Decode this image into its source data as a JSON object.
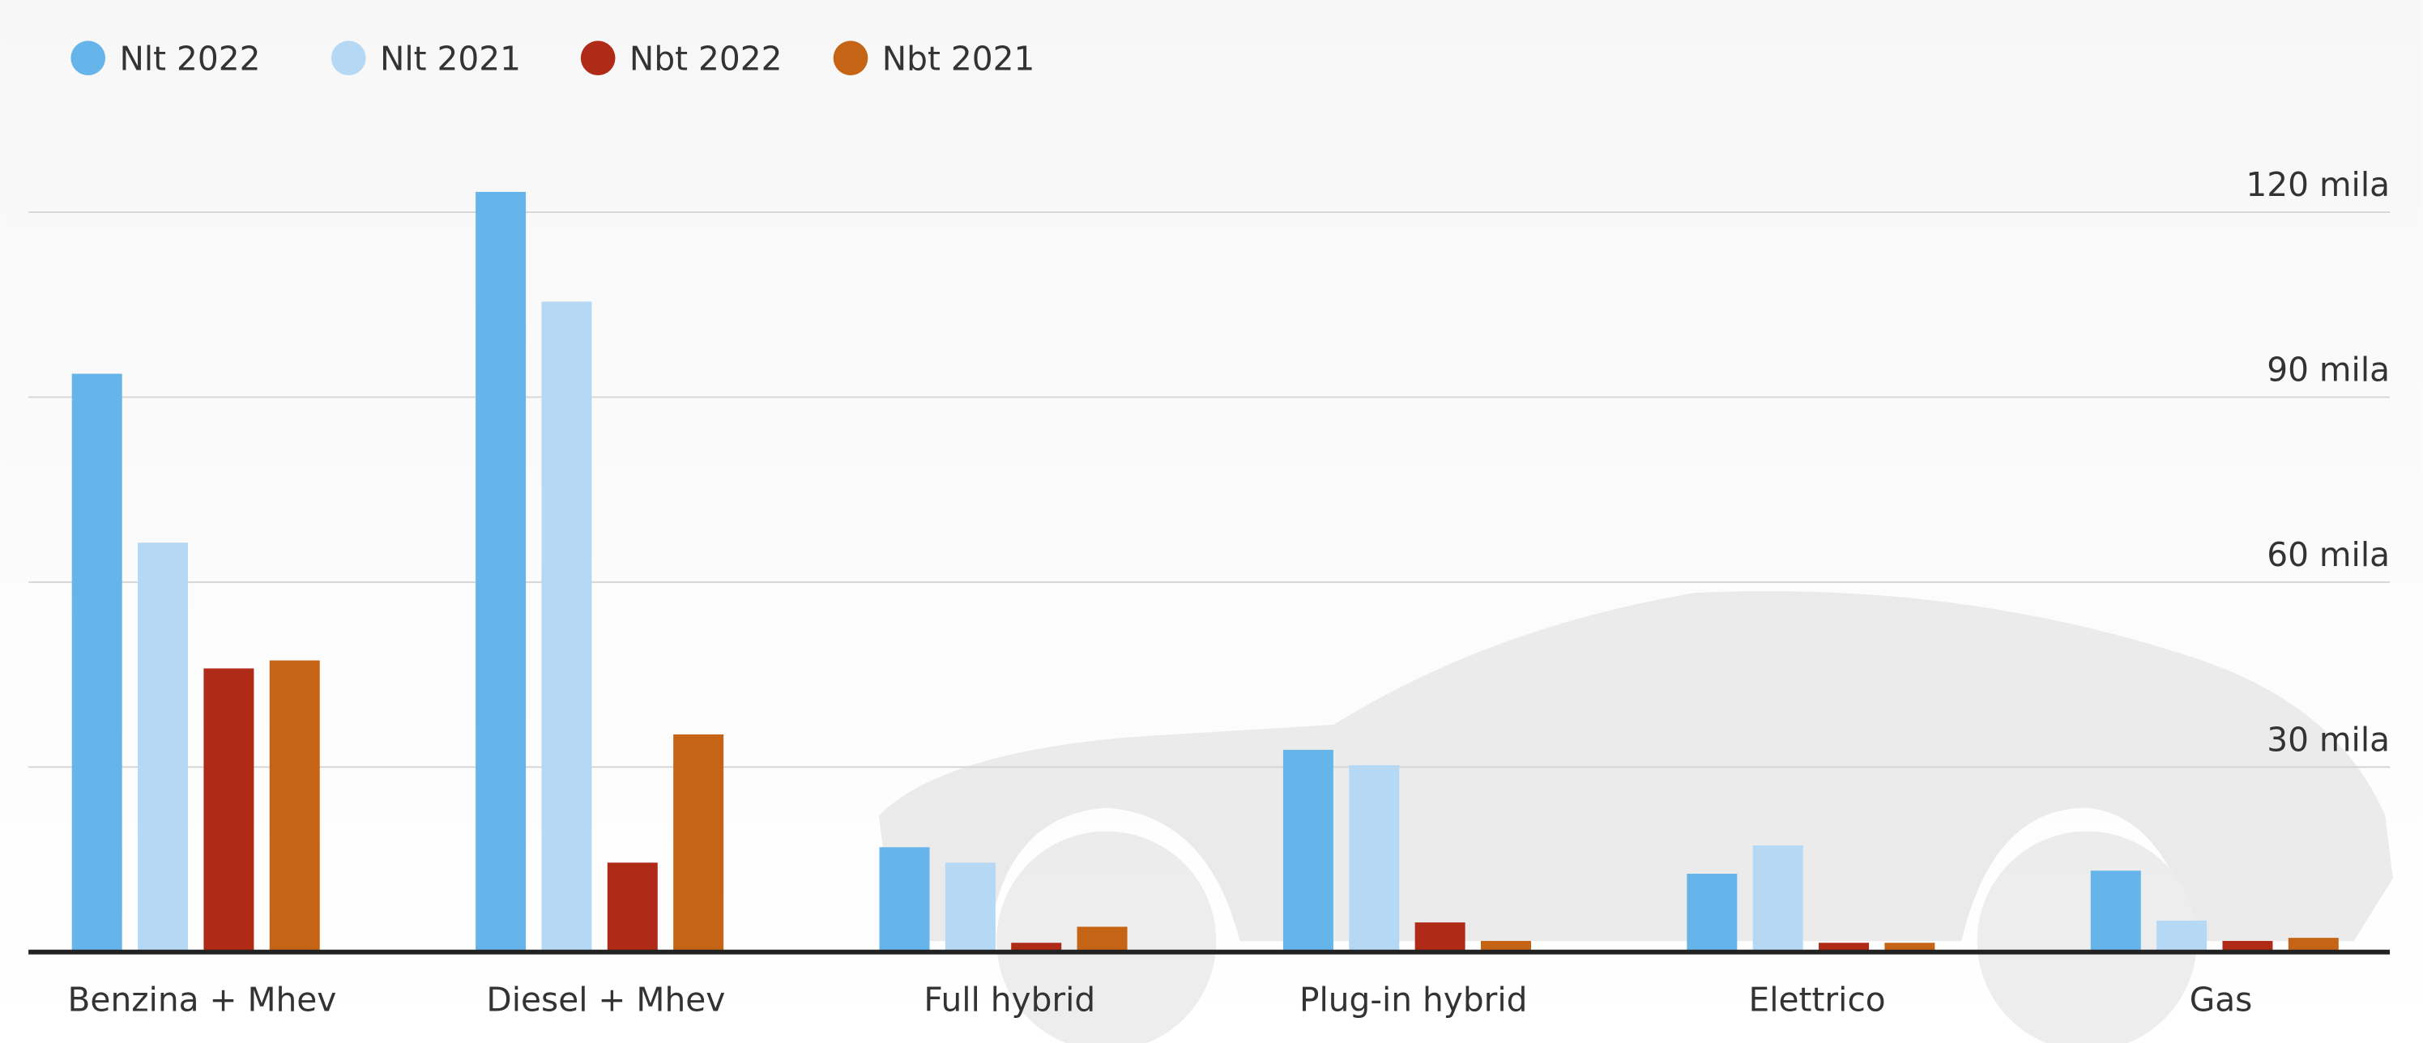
{
  "chart_data": {
    "type": "bar",
    "categories": [
      "Benzina + Mhev",
      "Diesel + Mhev",
      "Full hybrid",
      "Plug-in hybrid",
      "Elettrico",
      "Gas"
    ],
    "series": [
      {
        "name": "Nlt 2022",
        "color": "#65b5ea",
        "values": [
          93.8,
          123.3,
          17.0,
          32.8,
          12.7,
          13.2
        ]
      },
      {
        "name": "Nlt 2021",
        "color": "#b5d8f5",
        "values": [
          66.4,
          105.5,
          14.5,
          30.3,
          17.3,
          5.1
        ]
      },
      {
        "name": "Nbt 2022",
        "color": "#b02a18",
        "values": [
          46.0,
          14.5,
          1.5,
          4.8,
          1.5,
          1.8
        ]
      },
      {
        "name": "Nbt 2021",
        "color": "#c46414",
        "values": [
          47.3,
          35.3,
          4.1,
          1.8,
          1.5,
          2.3
        ]
      }
    ],
    "ylim": [
      0,
      130
    ],
    "yticks": [
      {
        "value": 30,
        "label": "30 mila"
      },
      {
        "value": 60,
        "label": "60 mila"
      },
      {
        "value": 90,
        "label": "90 mila"
      },
      {
        "value": 120,
        "label": "120 mila"
      }
    ],
    "grid": true
  }
}
